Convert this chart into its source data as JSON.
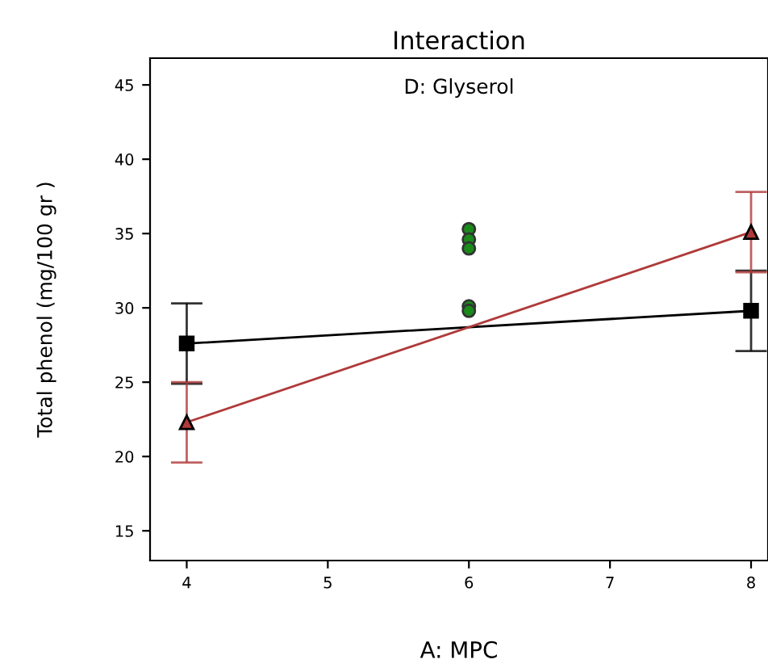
{
  "chart_data": {
    "type": "line",
    "title": "Interaction",
    "annotations": [
      "D: Glyserol"
    ],
    "xlabel": "A: MPC",
    "ylabel": "Total phenol (mg/100 gr )",
    "xlim": [
      3.74,
      8.12
    ],
    "xticks": [
      4,
      5,
      6,
      7,
      8
    ],
    "ylim": [
      13,
      46.8
    ],
    "yticks": [
      15,
      20,
      25,
      30,
      35,
      40,
      45
    ],
    "grid": false,
    "legend": false,
    "series": [
      {
        "color": "#000000",
        "marker": "square",
        "x": [
          4,
          8
        ],
        "values": [
          27.6,
          29.8
        ],
        "errors": [
          2.7,
          2.7
        ]
      },
      {
        "color": "#b03a3a",
        "marker": "triangle",
        "x": [
          4,
          8
        ],
        "values": [
          22.3,
          35.1
        ],
        "errors": [
          2.7,
          2.7
        ]
      },
      {
        "type": "scatter",
        "color": "#1a8a1a",
        "marker": "circle",
        "x": [
          6,
          6,
          6,
          6,
          6
        ],
        "values": [
          35.3,
          34.6,
          34.0,
          30.1,
          29.8
        ]
      }
    ]
  }
}
